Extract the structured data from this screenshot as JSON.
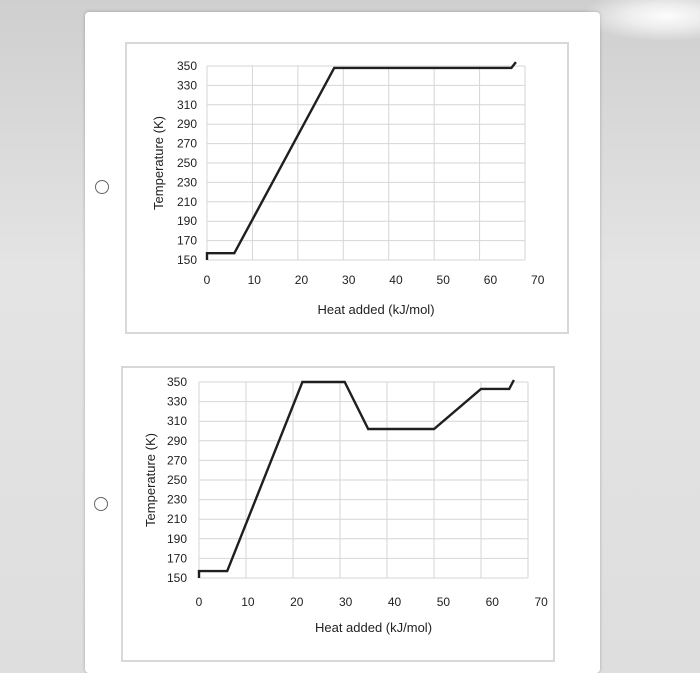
{
  "chart_data": [
    {
      "type": "line",
      "xlabel": "Heat added (kJ/mol)",
      "ylabel": "Temperature (K)",
      "xlim": [
        0,
        70
      ],
      "ylim": [
        150,
        350
      ],
      "x_ticks": [
        0,
        10,
        20,
        30,
        40,
        50,
        60,
        70
      ],
      "y_ticks": [
        350,
        330,
        310,
        290,
        270,
        250,
        230,
        210,
        190,
        170,
        150
      ],
      "grid": true,
      "series": [
        {
          "points": [
            [
              0,
              150
            ],
            [
              0,
              157
            ],
            [
              6,
              157
            ],
            [
              28,
              348
            ],
            [
              67,
              348
            ],
            [
              68,
              354
            ]
          ]
        }
      ]
    },
    {
      "type": "line",
      "xlabel": "Heat added (kJ/mol)",
      "ylabel": "Temperature (K)",
      "xlim": [
        0,
        70
      ],
      "ylim": [
        150,
        350
      ],
      "x_ticks": [
        0,
        10,
        20,
        30,
        40,
        50,
        60,
        70
      ],
      "y_ticks": [
        350,
        330,
        310,
        290,
        270,
        250,
        230,
        210,
        190,
        170,
        150
      ],
      "grid": true,
      "series": [
        {
          "points": [
            [
              0,
              150
            ],
            [
              0,
              157
            ],
            [
              6,
              157
            ],
            [
              22,
              350
            ],
            [
              31,
              350
            ],
            [
              36,
              302
            ],
            [
              50,
              302
            ],
            [
              60,
              343
            ],
            [
              66,
              343
            ],
            [
              67,
              352
            ]
          ]
        }
      ]
    }
  ],
  "colors": {
    "line": "#1f1f1f",
    "grid": "#d6d6d6",
    "page": "#ffffff"
  }
}
